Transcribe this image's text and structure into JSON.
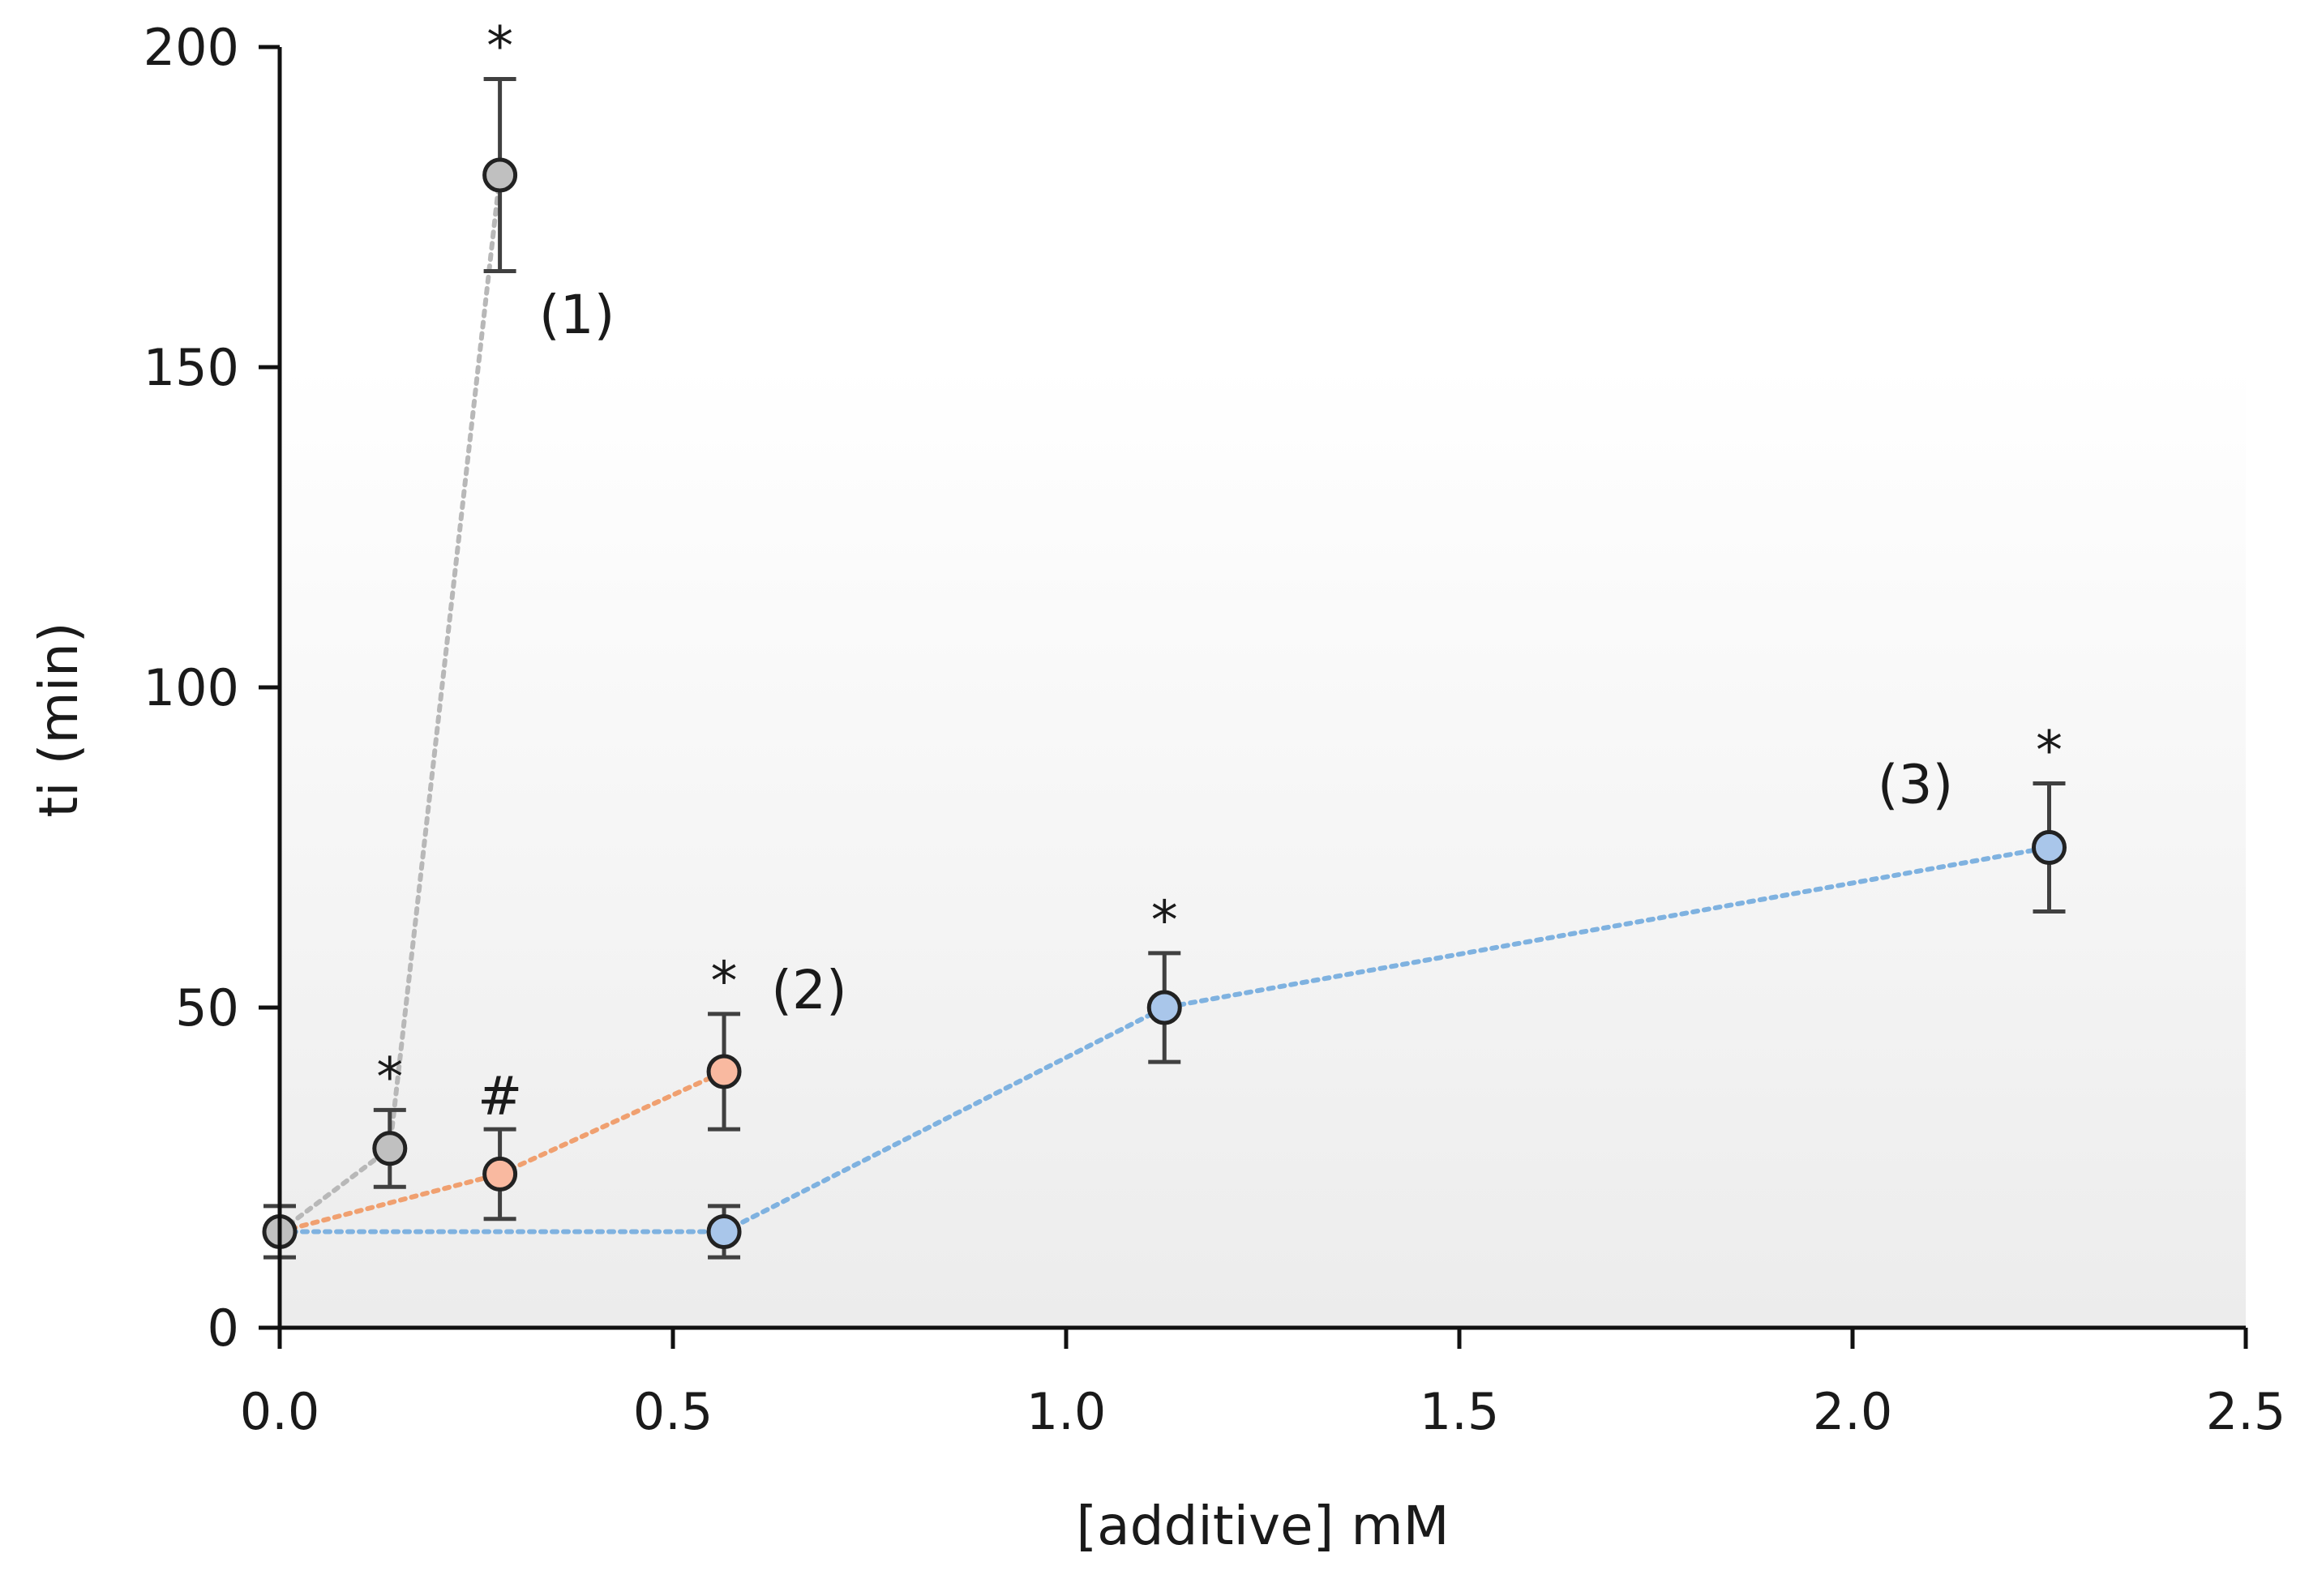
{
  "chart_data": {
    "type": "scatter",
    "title": "",
    "xlabel": "[additive] mM",
    "ylabel": "ti (min)",
    "xlim": [
      0,
      2.5
    ],
    "ylim": [
      0,
      200
    ],
    "x_ticks": [
      0.0,
      0.5,
      1.0,
      1.5,
      2.0,
      2.5
    ],
    "x_tick_labels": [
      "0.0",
      "0.5",
      "1.0",
      "1.5",
      "2.0",
      "2.5"
    ],
    "y_ticks": [
      0,
      50,
      100,
      150,
      200
    ],
    "y_tick_labels": [
      "0",
      "50",
      "100",
      "150",
      "200"
    ],
    "grid": false,
    "series": [
      {
        "name": "(1)",
        "line_color": "#b8b8b8",
        "marker_color": "#c0c0c0",
        "points": [
          {
            "x": 0.0,
            "y": 15,
            "err": 4,
            "mark": ""
          },
          {
            "x": 0.14,
            "y": 28,
            "err": 6,
            "mark": "*"
          },
          {
            "x": 0.28,
            "y": 180,
            "err": 15,
            "mark": "*"
          }
        ]
      },
      {
        "name": "(2)",
        "line_color": "#f0a070",
        "marker_color": "#f9b9a0",
        "points": [
          {
            "x": 0.0,
            "y": 15,
            "err": 4,
            "mark": ""
          },
          {
            "x": 0.28,
            "y": 24,
            "err": 7,
            "mark": "#"
          },
          {
            "x": 0.565,
            "y": 40,
            "err": 9,
            "mark": "*"
          }
        ]
      },
      {
        "name": "(3)",
        "line_color": "#7fb2e0",
        "marker_color": "#a9c6ea",
        "points": [
          {
            "x": 0.0,
            "y": 15,
            "err": 4,
            "mark": ""
          },
          {
            "x": 0.565,
            "y": 15,
            "err": 4,
            "mark": ""
          },
          {
            "x": 1.125,
            "y": 50,
            "err": 8.5,
            "mark": "*"
          },
          {
            "x": 2.25,
            "y": 75,
            "err": 10,
            "mark": "*"
          }
        ]
      }
    ],
    "series_labels": [
      {
        "text": "(1)",
        "x": 0.28,
        "y": 180
      },
      {
        "text": "(2)",
        "x": 0.565,
        "y": 40
      },
      {
        "text": "(3)",
        "x": 2.25,
        "y": 75
      }
    ]
  }
}
